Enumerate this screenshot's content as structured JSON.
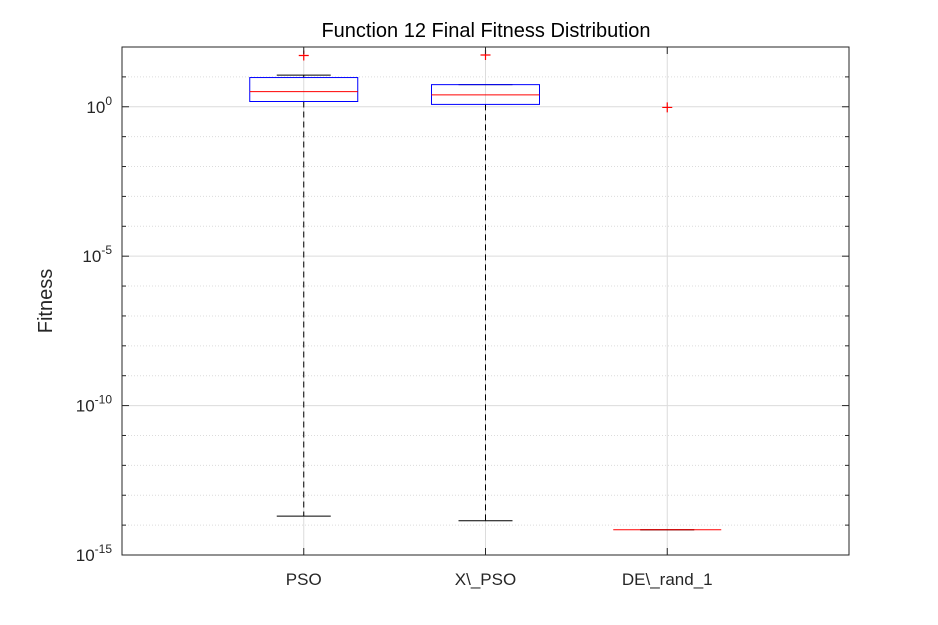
{
  "chart_data": {
    "type": "box",
    "title": "Function 12 Final Fitness Distribution",
    "xlabel": "",
    "ylabel": "Fitness",
    "yscale": "log",
    "ylim": [
      1e-15,
      100
    ],
    "yticks": [
      {
        "base": "10",
        "exp": "0"
      },
      {
        "base": "10",
        "exp": "-5"
      },
      {
        "base": "10",
        "exp": "-10"
      },
      {
        "base": "10",
        "exp": "-15"
      }
    ],
    "grid": true,
    "categories": [
      "PSO",
      "X\\_PSO",
      "DE\\_rand_1"
    ],
    "boxes": [
      {
        "whisker_low": 2e-14,
        "q1": 1.5,
        "median": 3.2,
        "q3": 9.5,
        "whisker_high": 11.5,
        "outliers": [
          52
        ]
      },
      {
        "whisker_low": 1.4e-14,
        "q1": 1.2,
        "median": 2.5,
        "q3": 5.5,
        "whisker_high": 5.5,
        "outliers": [
          54
        ]
      },
      {
        "whisker_low": 7e-15,
        "q1": 7e-15,
        "median": 7e-15,
        "q3": 7e-15,
        "whisker_high": 7e-15,
        "outliers": [
          0.95
        ]
      }
    ],
    "colors": {
      "box": "#0000ff",
      "median": "#ff0000",
      "whisker": "#000000",
      "outlier": "#ff0000",
      "grid": "#dcdcdc",
      "axis": "#262626"
    }
  }
}
